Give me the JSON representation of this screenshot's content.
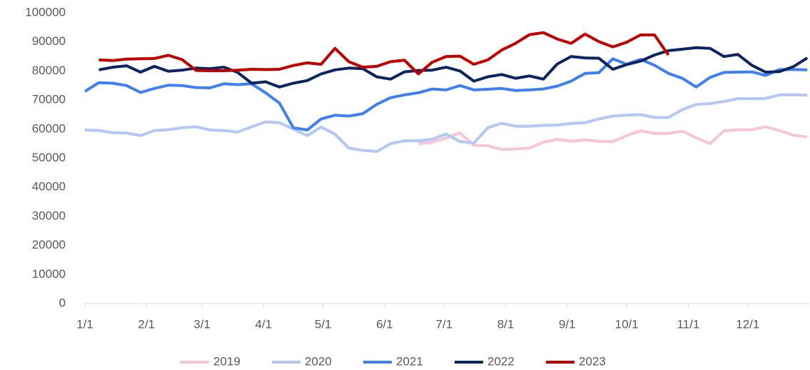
{
  "chart_data": {
    "type": "line",
    "x": [
      0,
      7,
      14,
      21,
      28,
      35,
      42,
      49,
      56,
      63,
      70,
      77,
      84,
      91,
      98,
      105,
      112,
      119,
      126,
      133,
      140,
      147,
      154,
      161,
      168,
      175,
      182,
      189,
      196,
      203,
      210,
      217,
      224,
      231,
      238,
      245,
      252,
      259,
      266,
      273,
      280,
      287,
      294,
      301,
      308,
      315,
      322,
      329,
      336,
      343,
      350,
      357,
      364
    ],
    "xlim": [
      0,
      365
    ],
    "xticks": [
      {
        "value": 0,
        "label": "1/1"
      },
      {
        "value": 31,
        "label": "2/1"
      },
      {
        "value": 59,
        "label": "3/1"
      },
      {
        "value": 90,
        "label": "4/1"
      },
      {
        "value": 120,
        "label": "5/1"
      },
      {
        "value": 151,
        "label": "6/1"
      },
      {
        "value": 181,
        "label": "7/1"
      },
      {
        "value": 212,
        "label": "8/1"
      },
      {
        "value": 243,
        "label": "9/1"
      },
      {
        "value": 273,
        "label": "10/1"
      },
      {
        "value": 304,
        "label": "11/1"
      },
      {
        "value": 334,
        "label": "12/1"
      }
    ],
    "ylim": [
      0,
      100000
    ],
    "yticks": [
      0,
      10000,
      20000,
      30000,
      40000,
      50000,
      60000,
      70000,
      80000,
      90000,
      100000
    ],
    "legend": "bottom",
    "series": [
      {
        "name": "2019",
        "color": "#f7c6d6",
        "values": [
          null,
          null,
          null,
          null,
          null,
          null,
          null,
          null,
          null,
          null,
          null,
          null,
          null,
          null,
          null,
          null,
          null,
          null,
          null,
          null,
          null,
          null,
          null,
          null,
          55000,
          55500,
          57000,
          58700,
          54500,
          54300,
          53000,
          53200,
          53500,
          55500,
          56500,
          55800,
          56300,
          55800,
          55700,
          57800,
          59400,
          58500,
          58500,
          59300,
          57000,
          55000,
          59400,
          59800,
          59800,
          60800,
          59500,
          57900,
          57300
        ]
      },
      {
        "name": "2020",
        "color": "#b4c7f5",
        "values": [
          59700,
          59500,
          58800,
          58700,
          57800,
          59500,
          59800,
          60500,
          60800,
          59700,
          59500,
          59000,
          60800,
          62500,
          62200,
          60000,
          57800,
          60700,
          58300,
          53500,
          52700,
          52300,
          55000,
          56000,
          56000,
          56500,
          58300,
          55700,
          55200,
          60500,
          62000,
          61000,
          61000,
          61300,
          61400,
          62000,
          62200,
          63500,
          64500,
          64800,
          65000,
          64000,
          64000,
          66700,
          68500,
          68800,
          69500,
          70500,
          70500,
          70600,
          71800,
          71800,
          71700
        ]
      },
      {
        "name": "2021",
        "color": "#3e7ff2",
        "values": [
          73000,
          76000,
          75800,
          75000,
          72600,
          74000,
          75100,
          75000,
          74300,
          74200,
          75600,
          75300,
          75600,
          72500,
          69000,
          60500,
          59700,
          63500,
          64800,
          64500,
          65300,
          68500,
          70800,
          71800,
          72500,
          73800,
          73500,
          75000,
          73500,
          73700,
          74000,
          73300,
          73500,
          73800,
          74800,
          76500,
          79200,
          79400,
          84200,
          82300,
          84000,
          82000,
          79200,
          77500,
          74500,
          77800,
          79500,
          79600,
          79700,
          78500,
          80500,
          80500,
          80400
        ]
      },
      {
        "name": "2022",
        "color": "#0c2461",
        "values": [
          null,
          80400,
          81300,
          81800,
          79600,
          81600,
          79900,
          80300,
          81000,
          80800,
          81300,
          79500,
          75800,
          76300,
          74500,
          75800,
          76700,
          79000,
          80400,
          81000,
          80800,
          78000,
          77200,
          79700,
          80200,
          80300,
          81300,
          80000,
          76500,
          78000,
          78800,
          77500,
          78300,
          77200,
          82400,
          85000,
          84500,
          84400,
          80600,
          82200,
          83400,
          85500,
          87000,
          87500,
          88000,
          87800,
          85000,
          85700,
          82000,
          79600,
          79800,
          81500,
          84500
        ]
      },
      {
        "name": "2023",
        "color": "#c00000",
        "values": [
          null,
          83800,
          83600,
          84100,
          84200,
          84300,
          85400,
          83900,
          80200,
          80100,
          80100,
          80300,
          80600,
          80500,
          80600,
          81900,
          82800,
          82300,
          87800,
          83200,
          81300,
          81600,
          83200,
          83700,
          79000,
          83000,
          85000,
          85100,
          82300,
          83800,
          87200,
          89500,
          92500,
          93200,
          91000,
          89500,
          92700,
          90100,
          88300,
          89900,
          92400,
          92400,
          85500,
          null,
          null,
          null,
          null,
          null,
          null,
          null,
          null,
          null,
          null
        ]
      }
    ]
  }
}
